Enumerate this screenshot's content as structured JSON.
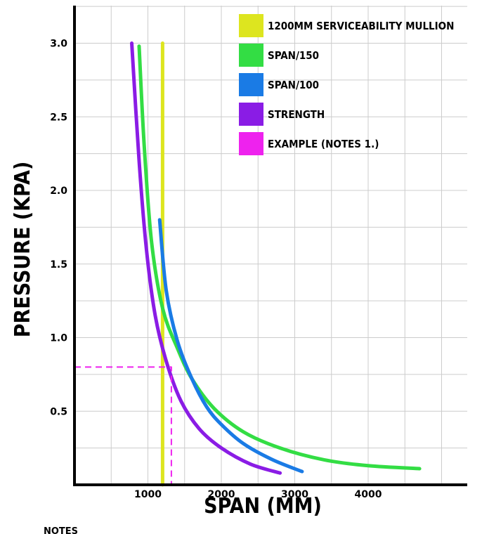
{
  "chart_data": {
    "type": "line",
    "xlabel": "SPAN (MM)",
    "ylabel": "PRESSURE (KPA)",
    "xlim": [
      0,
      5400
    ],
    "ylim": [
      0,
      3.3
    ],
    "grid": true,
    "legend_placement": "top-right",
    "x_ticks": [
      {
        "value": 1000,
        "label": "1000"
      },
      {
        "value": 2000,
        "label": "2000"
      },
      {
        "value": 3000,
        "label": "3000"
      },
      {
        "value": 4000,
        "label": "4000"
      }
    ],
    "y_ticks": [
      {
        "value": 0.5,
        "label": "0.5"
      },
      {
        "value": 1.0,
        "label": "1.0"
      },
      {
        "value": 1.5,
        "label": "1.5"
      },
      {
        "value": 2.0,
        "label": "2.0"
      },
      {
        "value": 2.5,
        "label": "2.5"
      },
      {
        "value": 3.0,
        "label": "3.0"
      }
    ],
    "series": [
      {
        "name": "1200MM SERVICEABILITY MULLION",
        "color": "#dde51f",
        "points": [
          [
            1200,
            0
          ],
          [
            1200,
            3.0
          ]
        ]
      },
      {
        "name": "SPAN/150",
        "color": "#33dd44",
        "points": [
          [
            880,
            2.98
          ],
          [
            950,
            2.3
          ],
          [
            1050,
            1.65
          ],
          [
            1200,
            1.2
          ],
          [
            1400,
            0.93
          ],
          [
            1600,
            0.72
          ],
          [
            1900,
            0.52
          ],
          [
            2300,
            0.36
          ],
          [
            2800,
            0.25
          ],
          [
            3400,
            0.17
          ],
          [
            4000,
            0.13
          ],
          [
            4700,
            0.11
          ]
        ]
      },
      {
        "name": "SPAN/100",
        "color": "#1a7be5",
        "points": [
          [
            1160,
            1.8
          ],
          [
            1250,
            1.32
          ],
          [
            1400,
            0.98
          ],
          [
            1600,
            0.72
          ],
          [
            1800,
            0.53
          ],
          [
            2000,
            0.41
          ],
          [
            2300,
            0.28
          ],
          [
            2700,
            0.17
          ],
          [
            3100,
            0.09
          ]
        ]
      },
      {
        "name": "STRENGTH",
        "color": "#8a1ce5",
        "points": [
          [
            780,
            3.0
          ],
          [
            880,
            2.2
          ],
          [
            980,
            1.6
          ],
          [
            1100,
            1.15
          ],
          [
            1250,
            0.84
          ],
          [
            1450,
            0.57
          ],
          [
            1700,
            0.38
          ],
          [
            2000,
            0.25
          ],
          [
            2400,
            0.14
          ],
          [
            2800,
            0.08
          ]
        ]
      },
      {
        "name": "EXAMPLE (NOTES 1.)",
        "color": "#ee22ee",
        "dashed": true,
        "points": [
          [
            0,
            0.8
          ],
          [
            1320,
            0.8
          ],
          [
            1320,
            0
          ]
        ]
      }
    ]
  },
  "notes_heading": "NOTES"
}
